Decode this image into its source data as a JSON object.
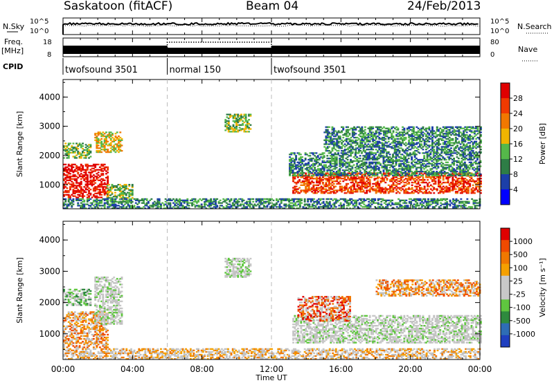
{
  "header": {
    "title": "Saskatoon (fitACF)",
    "beam": "Beam 04",
    "date": "24/Feb/2013"
  },
  "noise_panel": {
    "left_label": "N.Sky",
    "left_ticks": [
      "10^5",
      "10^0"
    ],
    "right_ticks": [
      "10^5",
      "10^0"
    ],
    "right_label": "N.Search"
  },
  "freq_panel": {
    "left_label_1": "Freq.",
    "left_label_2": "[MHz]",
    "left_ticks": [
      "18",
      "8"
    ],
    "right_ticks": [
      "80",
      "0"
    ],
    "right_label": "Nave"
  },
  "cpid": {
    "label": "CPID",
    "segments": [
      {
        "name": "twofsound 3501",
        "start_hour": 0,
        "end_hour": 6
      },
      {
        "name": "normal 150",
        "start_hour": 6,
        "end_hour": 12
      },
      {
        "name": "twofsound 3501",
        "start_hour": 12,
        "end_hour": 24
      }
    ]
  },
  "colors": {
    "power_scale": [
      "#0000ff",
      "#1c3fa8",
      "#2e7d46",
      "#55b84a",
      "#f0b400",
      "#f07800",
      "#f03a00",
      "#e00000"
    ],
    "velocity_scale": [
      "#1f3fbf",
      "#2e6db5",
      "#2e8a3e",
      "#5fc63f",
      "#c8c8c8",
      "#c8c8c8",
      "#f5a000",
      "#f07800",
      "#f04a00",
      "#e00000"
    ],
    "ground_scatter": "#c0c0c0"
  },
  "chart_data": [
    {
      "type": "heatmap",
      "name": "power",
      "xlabel": "",
      "ylabel": "Slant Range [km]",
      "xlim": [
        0,
        24
      ],
      "ylim": [
        180,
        4600
      ],
      "yticks": [
        "1000",
        "2000",
        "3000",
        "4000"
      ],
      "colorbar": {
        "label": "Power [dB]",
        "range": [
          0,
          32
        ],
        "ticks": [
          "4",
          "8",
          "12",
          "16",
          "20",
          "24",
          "28"
        ]
      },
      "scatter_regions": [
        {
          "t0": 0.0,
          "t1": 2.6,
          "r0": 550,
          "r1": 1700,
          "level": 7
        },
        {
          "t0": 0.0,
          "t1": 1.6,
          "r0": 1900,
          "r1": 2400,
          "level": 3
        },
        {
          "t0": 1.8,
          "t1": 3.4,
          "r0": 2100,
          "r1": 2800,
          "level": 4
        },
        {
          "t0": 2.5,
          "t1": 4.0,
          "r0": 400,
          "r1": 1000,
          "level": 3
        },
        {
          "t0": 9.3,
          "t1": 10.8,
          "r0": 2800,
          "r1": 3400,
          "level": 3
        },
        {
          "t0": 13.2,
          "t1": 24.0,
          "r0": 700,
          "r1": 1400,
          "level": 6
        },
        {
          "t0": 13.0,
          "t1": 24.0,
          "r0": 1300,
          "r1": 2100,
          "level": 2
        },
        {
          "t0": 15.0,
          "t1": 24.0,
          "r0": 2100,
          "r1": 3000,
          "level": 2
        },
        {
          "t0": 0.0,
          "t1": 24.0,
          "r0": 180,
          "r1": 500,
          "level": 2
        }
      ]
    },
    {
      "type": "heatmap",
      "name": "velocity",
      "xlabel": "Time UT",
      "ylabel": "Slant Range [km]",
      "xlim": [
        0,
        24
      ],
      "ylim": [
        180,
        4600
      ],
      "xticks": [
        "00:00",
        "04:00",
        "08:00",
        "12:00",
        "16:00",
        "20:00",
        "00:00"
      ],
      "yticks": [
        "1000",
        "2000",
        "3000",
        "4000"
      ],
      "colorbar": {
        "label": "Velocity [m s⁻¹]",
        "ticks": [
          "1000",
          "500",
          "100",
          "25",
          "-25",
          "-100",
          "-500",
          "-1000"
        ]
      },
      "scatter_regions": [
        {
          "t0": 0.0,
          "t1": 2.6,
          "r0": 550,
          "r1": 1700,
          "level": 7
        },
        {
          "t0": 0.0,
          "t1": 1.6,
          "r0": 1900,
          "r1": 2400,
          "level": 3
        },
        {
          "t0": 1.8,
          "t1": 3.4,
          "r0": 1300,
          "r1": 2800,
          "level": 4
        },
        {
          "t0": 9.3,
          "t1": 10.8,
          "r0": 2800,
          "r1": 3400,
          "level": 4
        },
        {
          "t0": 13.2,
          "t1": 24.0,
          "r0": 700,
          "r1": 1600,
          "level": 4
        },
        {
          "t0": 13.5,
          "t1": 16.5,
          "r0": 1400,
          "r1": 2200,
          "level": 8
        },
        {
          "t0": 18.0,
          "t1": 24.0,
          "r0": 2200,
          "r1": 2700,
          "level": 7
        },
        {
          "t0": 0.0,
          "t1": 24.0,
          "r0": 180,
          "r1": 500,
          "level": 6
        }
      ]
    }
  ]
}
